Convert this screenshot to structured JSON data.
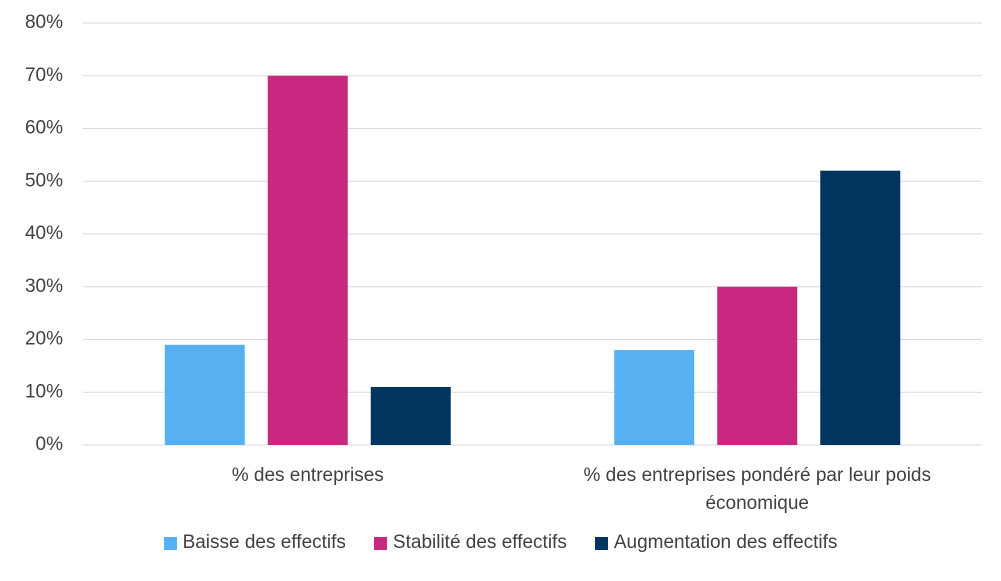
{
  "chart_data": {
    "type": "bar",
    "categories": [
      "% des entreprises",
      "% des entreprises pondéré par leur poids économique"
    ],
    "series": [
      {
        "name": "Baisse des effectifs",
        "color": "#56b0f2",
        "values": [
          19,
          18
        ]
      },
      {
        "name": "Stabilité des effectifs",
        "color": "#c8287f",
        "values": [
          70,
          30
        ]
      },
      {
        "name": "Augmentation des effectifs",
        "color": "#003560",
        "values": [
          11,
          52
        ]
      }
    ],
    "ylim": [
      0,
      80
    ],
    "yticks": [
      {
        "value": 0,
        "label": "0%"
      },
      {
        "value": 10,
        "label": "10%"
      },
      {
        "value": 20,
        "label": "20%"
      },
      {
        "value": 30,
        "label": "30%"
      },
      {
        "value": 40,
        "label": "40%"
      },
      {
        "value": 50,
        "label": "50%"
      },
      {
        "value": 60,
        "label": "60%"
      },
      {
        "value": 70,
        "label": "70%"
      },
      {
        "value": 80,
        "label": "80%"
      }
    ],
    "grid": true,
    "legend": "bottom"
  }
}
